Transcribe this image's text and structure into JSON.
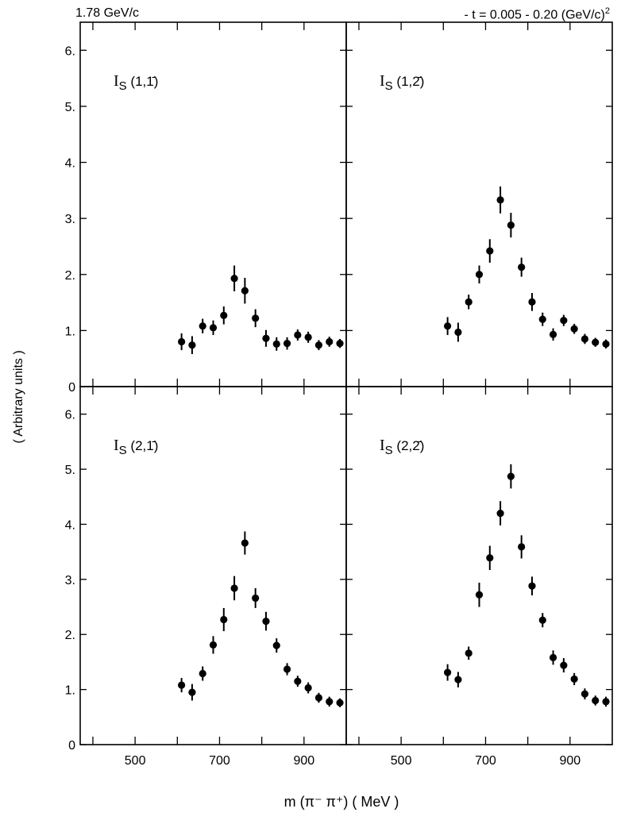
{
  "header": {
    "left": "1.78  GeV/c",
    "right": "- t = 0.005 - 0.20 (GeV/c)",
    "right_sup": "2"
  },
  "ylabel": "( Arbitrary units )",
  "xlabel": "m (π⁻ π⁺)  ( MeV )",
  "chart_data": {
    "type": "scatter",
    "xlim": [
      370,
      1000
    ],
    "ylim": [
      0,
      6.5
    ],
    "x_ticks": [
      500,
      700,
      900
    ],
    "x_tick_labels": [
      "500",
      "700",
      "900"
    ],
    "y_ticks": [
      0,
      1,
      2,
      3,
      4,
      5,
      6
    ],
    "y_tick_labels": [
      "0",
      "1.",
      "2.",
      "3.",
      "4.",
      "5.",
      "6."
    ],
    "x": [
      610,
      635,
      660,
      685,
      710,
      735,
      760,
      785,
      810,
      835,
      860,
      885,
      910,
      935,
      960,
      985
    ],
    "panels": [
      {
        "label": "I",
        "sub": "S",
        "index": "(1,1̄)",
        "values": [
          0.8,
          0.74,
          1.08,
          1.05,
          1.27,
          1.93,
          1.71,
          1.22,
          0.86,
          0.76,
          0.77,
          0.92,
          0.88,
          0.74,
          0.8,
          0.77
        ],
        "errors": [
          0.15,
          0.16,
          0.13,
          0.13,
          0.16,
          0.23,
          0.23,
          0.16,
          0.15,
          0.12,
          0.11,
          0.1,
          0.1,
          0.09,
          0.09,
          0.08
        ]
      },
      {
        "label": "I",
        "sub": "S",
        "index": "(1,2̄)",
        "values": [
          1.08,
          0.97,
          1.51,
          2.0,
          2.42,
          3.33,
          2.88,
          2.13,
          1.51,
          1.2,
          0.93,
          1.18,
          1.03,
          0.85,
          0.79,
          0.76
        ],
        "errors": [
          0.16,
          0.17,
          0.13,
          0.16,
          0.21,
          0.24,
          0.22,
          0.17,
          0.16,
          0.12,
          0.11,
          0.1,
          0.09,
          0.09,
          0.08,
          0.08
        ]
      },
      {
        "label": "I",
        "sub": "S",
        "index": "(2,1̄)",
        "values": [
          1.08,
          0.95,
          1.29,
          1.81,
          2.27,
          2.84,
          3.66,
          2.66,
          2.24,
          1.8,
          1.37,
          1.15,
          1.03,
          0.85,
          0.78,
          0.76
        ],
        "errors": [
          0.13,
          0.15,
          0.13,
          0.16,
          0.21,
          0.22,
          0.21,
          0.18,
          0.17,
          0.13,
          0.11,
          0.1,
          0.1,
          0.09,
          0.09,
          0.08
        ]
      },
      {
        "label": "I",
        "sub": "S",
        "index": "(2,2̄)",
        "values": [
          1.31,
          1.18,
          1.66,
          2.72,
          3.39,
          4.2,
          4.87,
          3.59,
          2.88,
          2.26,
          1.58,
          1.44,
          1.19,
          0.92,
          0.8,
          0.78
        ],
        "errors": [
          0.15,
          0.14,
          0.12,
          0.22,
          0.22,
          0.22,
          0.22,
          0.21,
          0.17,
          0.13,
          0.13,
          0.13,
          0.11,
          0.1,
          0.09,
          0.09
        ]
      }
    ]
  }
}
